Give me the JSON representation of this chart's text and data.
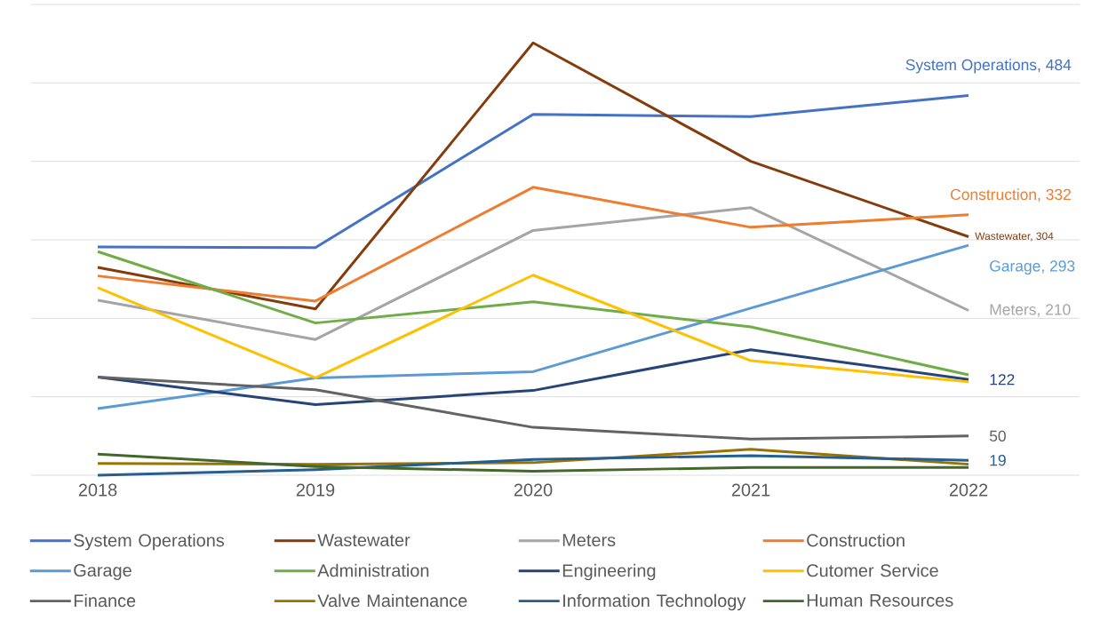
{
  "chart_data": {
    "type": "line",
    "categories": [
      "2018",
      "2019",
      "2020",
      "2021",
      "2022"
    ],
    "ylim": [
      0,
      600
    ],
    "yticks": [
      {
        "value": 0,
        "label": null
      },
      {
        "value": 100,
        "label": null
      },
      {
        "value": 200,
        "label": null
      },
      {
        "value": 300,
        "label": null
      },
      {
        "value": 400,
        "label": null
      },
      {
        "value": 500,
        "label": null
      },
      {
        "value": 600,
        "label": null
      }
    ],
    "tick_labels": "x",
    "grid": "y",
    "legend": "bottom",
    "series": [
      {
        "name": "System Operations",
        "color": "#4472c4",
        "values": [
          291,
          290,
          460,
          457,
          484
        ],
        "value_labels": [
          null,
          null,
          null,
          null,
          "System Operations,  484"
        ]
      },
      {
        "name": "Wastewater",
        "color": "#843c0c",
        "values": [
          265,
          212,
          551,
          400,
          304
        ],
        "value_labels": [
          null,
          null,
          null,
          null,
          "Wastewater,  304"
        ]
      },
      {
        "name": "Meters",
        "color": "#a5a5a5",
        "values": [
          223,
          173,
          312,
          341,
          210
        ],
        "value_labels": [
          null,
          null,
          null,
          null,
          "Meters,  210"
        ]
      },
      {
        "name": "Construction",
        "color": "#ed7d31",
        "values": [
          254,
          222,
          367,
          316,
          332
        ],
        "value_labels": [
          null,
          null,
          null,
          null,
          "Construction, 332"
        ]
      },
      {
        "name": "Garage",
        "color": "#5b9bd5",
        "values": [
          85,
          124,
          132,
          213,
          293
        ],
        "value_labels": [
          null,
          null,
          null,
          null,
          "Garage,  293"
        ]
      },
      {
        "name": "Administration",
        "color": "#70ad47",
        "values": [
          285,
          194,
          221,
          189,
          128
        ]
      },
      {
        "name": "Engineering",
        "color": "#264478",
        "values": [
          125,
          90,
          108,
          160,
          122
        ],
        "value_labels": [
          null,
          null,
          null,
          null,
          "122"
        ]
      },
      {
        "name": "Cutomer Service",
        "color": "#ffc000",
        "values": [
          239,
          124,
          255,
          146,
          119
        ]
      },
      {
        "name": "Finance",
        "color": "#636363",
        "values": [
          125,
          109,
          61,
          46,
          50
        ],
        "value_labels": [
          null,
          null,
          null,
          null,
          "50"
        ]
      },
      {
        "name": "Valve Maintenance",
        "color": "#997300",
        "values": [
          15,
          14,
          16,
          33,
          14
        ]
      },
      {
        "name": "Information Technology",
        "color": "#255e91",
        "values": [
          0,
          7,
          20,
          25,
          19
        ],
        "value_labels": [
          null,
          null,
          null,
          null,
          "19"
        ]
      },
      {
        "name": "Human Resources",
        "color": "#43682b",
        "values": [
          27,
          11,
          5,
          10,
          10
        ]
      }
    ]
  }
}
